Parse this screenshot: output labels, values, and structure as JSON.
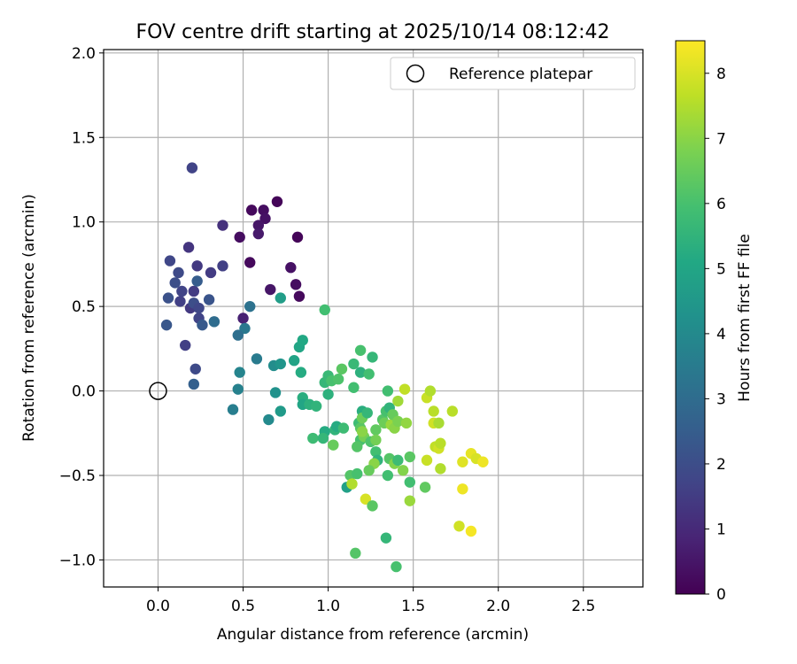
{
  "chart_data": {
    "type": "scatter",
    "title": "FOV centre drift starting at 2025/10/14 08:12:42",
    "xlabel": "Angular distance from reference (arcmin)",
    "ylabel": "Rotation from reference (arcmin)",
    "xlim": [
      -0.32,
      2.85
    ],
    "ylim": [
      -1.16,
      2.02
    ],
    "xticks": [
      0.0,
      0.5,
      1.0,
      1.5,
      2.0,
      2.5
    ],
    "xtick_labels": [
      "0.0",
      "0.5",
      "1.0",
      "1.5",
      "2.0",
      "2.5"
    ],
    "yticks": [
      -1.0,
      -0.5,
      0.0,
      0.5,
      1.0,
      1.5,
      2.0
    ],
    "ytick_labels": [
      "−1.0",
      "−0.5",
      "0.0",
      "0.5",
      "1.0",
      "1.5",
      "2.0"
    ],
    "grid": true,
    "legend": {
      "placement": "top-right",
      "entries": [
        "Reference platepar"
      ]
    },
    "reference_point": {
      "x": 0.0,
      "y": 0.0
    },
    "colorbar": {
      "label": "Hours from first FF file",
      "range": [
        0,
        8.5
      ],
      "ticks": [
        0,
        1,
        2,
        3,
        4,
        5,
        6,
        7,
        8
      ],
      "tick_labels": [
        "0",
        "1",
        "2",
        "3",
        "4",
        "5",
        "6",
        "7",
        "8"
      ],
      "colormap": "viridis"
    },
    "points": [
      {
        "x": 0.7,
        "y": 1.12,
        "h": 0.1
      },
      {
        "x": 0.55,
        "y": 1.07,
        "h": 0.2
      },
      {
        "x": 0.62,
        "y": 1.07,
        "h": 0.3
      },
      {
        "x": 0.63,
        "y": 1.02,
        "h": 0.4
      },
      {
        "x": 0.59,
        "y": 0.98,
        "h": 0.5
      },
      {
        "x": 0.59,
        "y": 0.93,
        "h": 0.6
      },
      {
        "x": 0.48,
        "y": 0.91,
        "h": 0.3
      },
      {
        "x": 0.82,
        "y": 0.91,
        "h": 0.1
      },
      {
        "x": 0.54,
        "y": 0.76,
        "h": 0.2
      },
      {
        "x": 0.78,
        "y": 0.73,
        "h": 0.4
      },
      {
        "x": 0.81,
        "y": 0.63,
        "h": 0.3
      },
      {
        "x": 0.66,
        "y": 0.6,
        "h": 0.5
      },
      {
        "x": 0.83,
        "y": 0.56,
        "h": 0.2
      },
      {
        "x": 0.5,
        "y": 0.43,
        "h": 0.8
      },
      {
        "x": 0.2,
        "y": 1.32,
        "h": 1.7
      },
      {
        "x": 0.38,
        "y": 0.98,
        "h": 1.2
      },
      {
        "x": 0.18,
        "y": 0.85,
        "h": 1.3
      },
      {
        "x": 0.07,
        "y": 0.77,
        "h": 1.8
      },
      {
        "x": 0.23,
        "y": 0.74,
        "h": 1.4
      },
      {
        "x": 0.31,
        "y": 0.7,
        "h": 1.5
      },
      {
        "x": 0.38,
        "y": 0.74,
        "h": 1.6
      },
      {
        "x": 0.12,
        "y": 0.7,
        "h": 1.9
      },
      {
        "x": 0.1,
        "y": 0.64,
        "h": 2.0
      },
      {
        "x": 0.14,
        "y": 0.59,
        "h": 1.7
      },
      {
        "x": 0.21,
        "y": 0.59,
        "h": 1.5
      },
      {
        "x": 0.06,
        "y": 0.55,
        "h": 2.1
      },
      {
        "x": 0.13,
        "y": 0.53,
        "h": 1.6
      },
      {
        "x": 0.19,
        "y": 0.49,
        "h": 1.4
      },
      {
        "x": 0.21,
        "y": 0.52,
        "h": 2.0
      },
      {
        "x": 0.24,
        "y": 0.49,
        "h": 1.8
      },
      {
        "x": 0.3,
        "y": 0.54,
        "h": 2.2
      },
      {
        "x": 0.23,
        "y": 0.65,
        "h": 2.5
      },
      {
        "x": 0.24,
        "y": 0.43,
        "h": 1.7
      },
      {
        "x": 0.26,
        "y": 0.39,
        "h": 2.4
      },
      {
        "x": 0.05,
        "y": 0.39,
        "h": 2.3
      },
      {
        "x": 0.16,
        "y": 0.27,
        "h": 1.6
      },
      {
        "x": 0.22,
        "y": 0.13,
        "h": 1.9
      },
      {
        "x": 0.21,
        "y": 0.04,
        "h": 2.6
      },
      {
        "x": 0.33,
        "y": 0.41,
        "h": 3.0
      },
      {
        "x": 0.54,
        "y": 0.5,
        "h": 3.2
      },
      {
        "x": 0.51,
        "y": 0.37,
        "h": 3.4
      },
      {
        "x": 0.47,
        "y": 0.33,
        "h": 3.1
      },
      {
        "x": 0.58,
        "y": 0.19,
        "h": 3.5
      },
      {
        "x": 0.48,
        "y": 0.11,
        "h": 3.8
      },
      {
        "x": 0.47,
        "y": 0.01,
        "h": 3.7
      },
      {
        "x": 0.44,
        "y": -0.11,
        "h": 3.6
      },
      {
        "x": 0.65,
        "y": -0.17,
        "h": 4.0
      },
      {
        "x": 0.69,
        "y": -0.01,
        "h": 4.3
      },
      {
        "x": 0.68,
        "y": 0.15,
        "h": 4.1
      },
      {
        "x": 0.72,
        "y": 0.16,
        "h": 4.4
      },
      {
        "x": 0.72,
        "y": -0.12,
        "h": 4.6
      },
      {
        "x": 0.72,
        "y": 0.55,
        "h": 4.7
      },
      {
        "x": 0.8,
        "y": 0.18,
        "h": 4.9
      },
      {
        "x": 0.83,
        "y": 0.26,
        "h": 5.0
      },
      {
        "x": 0.85,
        "y": 0.3,
        "h": 5.1
      },
      {
        "x": 0.84,
        "y": 0.11,
        "h": 5.2
      },
      {
        "x": 0.85,
        "y": -0.04,
        "h": 5.3
      },
      {
        "x": 0.85,
        "y": -0.08,
        "h": 5.0
      },
      {
        "x": 0.89,
        "y": -0.08,
        "h": 5.4
      },
      {
        "x": 0.93,
        "y": -0.09,
        "h": 5.5
      },
      {
        "x": 0.91,
        "y": -0.28,
        "h": 5.8
      },
      {
        "x": 0.98,
        "y": -0.24,
        "h": 5.2
      },
      {
        "x": 0.97,
        "y": -0.28,
        "h": 5.6
      },
      {
        "x": 0.98,
        "y": 0.48,
        "h": 5.9
      },
      {
        "x": 0.98,
        "y": 0.05,
        "h": 5.6
      },
      {
        "x": 1.0,
        "y": 0.09,
        "h": 5.7
      },
      {
        "x": 1.0,
        "y": -0.02,
        "h": 5.4
      },
      {
        "x": 1.02,
        "y": 0.06,
        "h": 6.0
      },
      {
        "x": 1.04,
        "y": -0.23,
        "h": 5.5
      },
      {
        "x": 1.05,
        "y": -0.21,
        "h": 5.2
      },
      {
        "x": 1.06,
        "y": 0.07,
        "h": 6.1
      },
      {
        "x": 1.08,
        "y": 0.13,
        "h": 6.3
      },
      {
        "x": 1.09,
        "y": -0.22,
        "h": 5.8
      },
      {
        "x": 1.03,
        "y": -0.32,
        "h": 6.5
      },
      {
        "x": 1.11,
        "y": -0.57,
        "h": 4.8
      },
      {
        "x": 1.13,
        "y": -0.5,
        "h": 6.2
      },
      {
        "x": 1.14,
        "y": -0.55,
        "h": 7.5
      },
      {
        "x": 1.15,
        "y": 0.02,
        "h": 5.9
      },
      {
        "x": 1.15,
        "y": 0.16,
        "h": 5.7
      },
      {
        "x": 1.19,
        "y": 0.24,
        "h": 6.0
      },
      {
        "x": 1.19,
        "y": 0.11,
        "h": 5.4
      },
      {
        "x": 1.2,
        "y": -0.12,
        "h": 5.3
      },
      {
        "x": 1.18,
        "y": -0.19,
        "h": 5.8
      },
      {
        "x": 1.19,
        "y": -0.22,
        "h": 6.3
      },
      {
        "x": 1.2,
        "y": -0.16,
        "h": 6.6
      },
      {
        "x": 1.19,
        "y": -0.29,
        "h": 6.0
      },
      {
        "x": 1.17,
        "y": -0.33,
        "h": 6.2
      },
      {
        "x": 1.21,
        "y": -0.27,
        "h": 6.7
      },
      {
        "x": 1.2,
        "y": -0.24,
        "h": 7.0
      },
      {
        "x": 1.23,
        "y": -0.13,
        "h": 5.6
      },
      {
        "x": 1.24,
        "y": 0.1,
        "h": 5.9
      },
      {
        "x": 1.26,
        "y": 0.2,
        "h": 5.6
      },
      {
        "x": 1.25,
        "y": -0.3,
        "h": 6.1
      },
      {
        "x": 1.28,
        "y": -0.23,
        "h": 6.4
      },
      {
        "x": 1.28,
        "y": -0.29,
        "h": 6.7
      },
      {
        "x": 1.28,
        "y": -0.36,
        "h": 5.9
      },
      {
        "x": 1.29,
        "y": -0.41,
        "h": 5.5
      },
      {
        "x": 1.27,
        "y": -0.43,
        "h": 7.0
      },
      {
        "x": 1.24,
        "y": -0.47,
        "h": 6.5
      },
      {
        "x": 1.17,
        "y": -0.49,
        "h": 6.0
      },
      {
        "x": 1.16,
        "y": -0.96,
        "h": 6.2
      },
      {
        "x": 1.22,
        "y": -0.64,
        "h": 8.0
      },
      {
        "x": 1.26,
        "y": -0.68,
        "h": 6.3
      },
      {
        "x": 1.32,
        "y": -0.17,
        "h": 6.2
      },
      {
        "x": 1.33,
        "y": -0.19,
        "h": 6.6
      },
      {
        "x": 1.34,
        "y": -0.12,
        "h": 6.0
      },
      {
        "x": 1.35,
        "y": 0.0,
        "h": 5.9
      },
      {
        "x": 1.36,
        "y": -0.1,
        "h": 5.5
      },
      {
        "x": 1.37,
        "y": -0.2,
        "h": 7.2
      },
      {
        "x": 1.38,
        "y": -0.14,
        "h": 6.5
      },
      {
        "x": 1.39,
        "y": -0.22,
        "h": 7.0
      },
      {
        "x": 1.41,
        "y": -0.18,
        "h": 6.8
      },
      {
        "x": 1.41,
        "y": -0.06,
        "h": 7.3
      },
      {
        "x": 1.36,
        "y": -0.4,
        "h": 6.2
      },
      {
        "x": 1.39,
        "y": -0.43,
        "h": 6.9
      },
      {
        "x": 1.41,
        "y": -0.41,
        "h": 5.8
      },
      {
        "x": 1.35,
        "y": -0.5,
        "h": 5.9
      },
      {
        "x": 1.34,
        "y": -0.87,
        "h": 5.6
      },
      {
        "x": 1.4,
        "y": -1.04,
        "h": 6.0
      },
      {
        "x": 1.45,
        "y": 0.01,
        "h": 7.7
      },
      {
        "x": 1.46,
        "y": -0.19,
        "h": 7.1
      },
      {
        "x": 1.48,
        "y": -0.39,
        "h": 6.3
      },
      {
        "x": 1.48,
        "y": -0.54,
        "h": 5.9
      },
      {
        "x": 1.48,
        "y": -0.65,
        "h": 7.2
      },
      {
        "x": 1.44,
        "y": -0.47,
        "h": 6.9
      },
      {
        "x": 1.57,
        "y": -0.57,
        "h": 6.4
      },
      {
        "x": 1.58,
        "y": -0.04,
        "h": 7.8
      },
      {
        "x": 1.6,
        "y": 0.0,
        "h": 7.5
      },
      {
        "x": 1.62,
        "y": -0.12,
        "h": 7.6
      },
      {
        "x": 1.62,
        "y": -0.19,
        "h": 7.9
      },
      {
        "x": 1.65,
        "y": -0.19,
        "h": 7.4
      },
      {
        "x": 1.63,
        "y": -0.33,
        "h": 7.7
      },
      {
        "x": 1.65,
        "y": -0.34,
        "h": 7.9
      },
      {
        "x": 1.66,
        "y": -0.31,
        "h": 7.6
      },
      {
        "x": 1.58,
        "y": -0.41,
        "h": 7.8
      },
      {
        "x": 1.66,
        "y": -0.46,
        "h": 7.5
      },
      {
        "x": 1.73,
        "y": -0.12,
        "h": 7.6
      },
      {
        "x": 1.77,
        "y": -0.8,
        "h": 7.9
      },
      {
        "x": 1.79,
        "y": -0.42,
        "h": 8.1
      },
      {
        "x": 1.79,
        "y": -0.58,
        "h": 8.3
      },
      {
        "x": 1.84,
        "y": -0.37,
        "h": 8.2
      },
      {
        "x": 1.87,
        "y": -0.4,
        "h": 8.0
      },
      {
        "x": 1.84,
        "y": -0.83,
        "h": 8.4
      },
      {
        "x": 1.91,
        "y": -0.42,
        "h": 8.3
      }
    ]
  }
}
